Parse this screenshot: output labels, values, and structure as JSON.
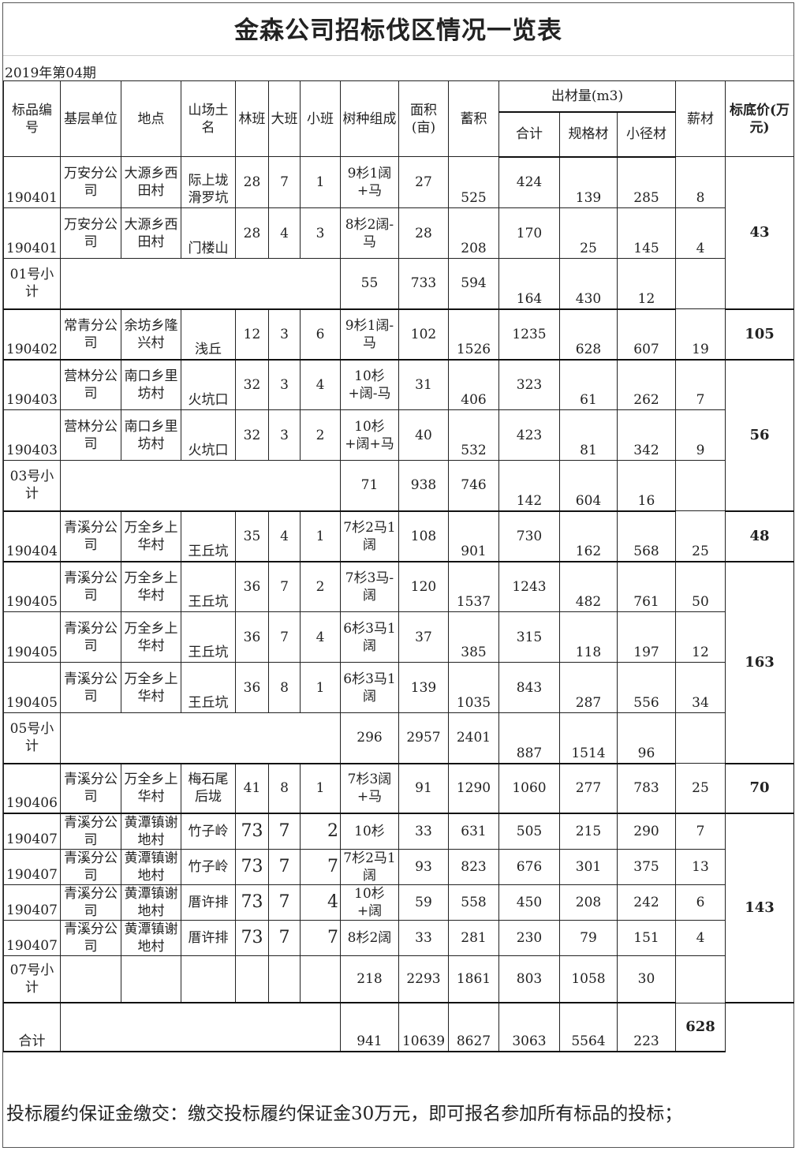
{
  "title": "金森公司招标伐区情况一览表",
  "period": "2019年第04期",
  "headers": {
    "lot_no": "标品编号",
    "unit": "基层单位",
    "location": "地点",
    "site_name": "山场土名",
    "forest_class": "林班",
    "big_class": "大班",
    "small_class": "小班",
    "species": "树种组成",
    "area": "面积(亩)",
    "volume": "蓄积",
    "output": "出材量(m3)",
    "total": "合计",
    "spec": "规格材",
    "small_dia": "小径材",
    "firewood": "薪材",
    "base_price": "标底价(万元)"
  },
  "rows": [
    {
      "type": "item",
      "cells": [
        "190401",
        "万安分公司",
        "大源乡西田村",
        "际上垅滑罗坑",
        "28",
        "7",
        "1",
        "9杉1阔+马",
        "27",
        "525",
        "424",
        "139",
        "285",
        "8"
      ],
      "price": "43"
    },
    {
      "type": "item",
      "cells": [
        "190401",
        "万安分公司",
        "大源乡西田村",
        "门楼山",
        "28",
        "4",
        "3",
        "8杉2阔-马",
        "28",
        "208",
        "170",
        "25",
        "145",
        "4"
      ]
    },
    {
      "type": "subtotal",
      "label": "01号小计",
      "cells": [
        "55",
        "733",
        "594",
        "164",
        "430",
        "12"
      ]
    },
    {
      "type": "item",
      "cells": [
        "190402",
        "常青分公司",
        "余坊乡隆兴村",
        "浅丘",
        "12",
        "3",
        "6",
        "9杉1阔-马",
        "102",
        "1526",
        "1235",
        "628",
        "607",
        "19"
      ],
      "price": "105"
    },
    {
      "type": "item",
      "cells": [
        "190403",
        "营林分公司",
        "南口乡里坊村",
        "火坑口",
        "32",
        "3",
        "4",
        "10杉+阔-马",
        "31",
        "406",
        "323",
        "61",
        "262",
        "7"
      ],
      "price": "56"
    },
    {
      "type": "item",
      "cells": [
        "190403",
        "营林分公司",
        "南口乡里坊村",
        "火坑口",
        "32",
        "3",
        "2",
        "10杉+阔+马",
        "40",
        "532",
        "423",
        "81",
        "342",
        "9"
      ]
    },
    {
      "type": "subtotal",
      "label": "03号小计",
      "cells": [
        "71",
        "938",
        "746",
        "142",
        "604",
        "16"
      ]
    },
    {
      "type": "item",
      "cells": [
        "190404",
        "青溪分公司",
        "万全乡上华村",
        "王丘坑",
        "35",
        "4",
        "1",
        "7杉2马1阔",
        "108",
        "901",
        "730",
        "162",
        "568",
        "25"
      ],
      "price": "48"
    },
    {
      "type": "item",
      "cells": [
        "190405",
        "青溪分公司",
        "万全乡上华村",
        "王丘坑",
        "36",
        "7",
        "2",
        "7杉3马-阔",
        "120",
        "1537",
        "1243",
        "482",
        "761",
        "50"
      ],
      "price": "163"
    },
    {
      "type": "item",
      "cells": [
        "190405",
        "青溪分公司",
        "万全乡上华村",
        "王丘坑",
        "36",
        "7",
        "4",
        "6杉3马1阔",
        "37",
        "385",
        "315",
        "118",
        "197",
        "12"
      ]
    },
    {
      "type": "item",
      "cells": [
        "190405",
        "青溪分公司",
        "万全乡上华村",
        "王丘坑",
        "36",
        "8",
        "1",
        "6杉3马1阔",
        "139",
        "1035",
        "843",
        "287",
        "556",
        "34"
      ]
    },
    {
      "type": "subtotal",
      "label": "05号小计",
      "cells": [
        "296",
        "2957",
        "2401",
        "887",
        "1514",
        "96"
      ]
    },
    {
      "type": "item2",
      "cells": [
        "190406",
        "青溪分公司",
        "万全乡上华村",
        "梅石尾后垅",
        "41",
        "8",
        "1",
        "7杉3阔+马",
        "91",
        "1290",
        "1060",
        "277",
        "783",
        "25"
      ],
      "price": "70"
    },
    {
      "type": "item3",
      "cells": [
        "190407",
        "青溪分公司",
        "黄潭镇谢地村",
        "竹子岭",
        "73",
        "7",
        "2",
        "10杉",
        "33",
        "631",
        "505",
        "215",
        "290",
        "7"
      ],
      "price": "143"
    },
    {
      "type": "item3",
      "cells": [
        "190407",
        "青溪分公司",
        "黄潭镇谢地村",
        "竹子岭",
        "73",
        "7",
        "7",
        "7杉2马1阔",
        "93",
        "823",
        "676",
        "301",
        "375",
        "13"
      ]
    },
    {
      "type": "item3",
      "cells": [
        "190407",
        "青溪分公司",
        "黄潭镇谢地村",
        "厝许排",
        "73",
        "7",
        "4",
        "10杉+阔",
        "59",
        "558",
        "450",
        "208",
        "242",
        "6"
      ]
    },
    {
      "type": "item3",
      "cells": [
        "190407",
        "青溪分公司",
        "黄潭镇谢地村",
        "厝许排",
        "73",
        "7",
        "7",
        "8杉2阔",
        "33",
        "281",
        "230",
        "79",
        "151",
        "4"
      ]
    },
    {
      "type": "subtotal7",
      "label": "07号小计",
      "cells": [
        "218",
        "2293",
        "1861",
        "803",
        "1058",
        "30"
      ]
    },
    {
      "type": "total",
      "label": "合计",
      "cells": [
        "941",
        "10639",
        "8627",
        "3063",
        "5564",
        "223"
      ],
      "price": "628"
    }
  ],
  "footer": "投标履约保证金缴交：缴交投标履约保证金30万元，即可报名参加所有标品的投标；"
}
